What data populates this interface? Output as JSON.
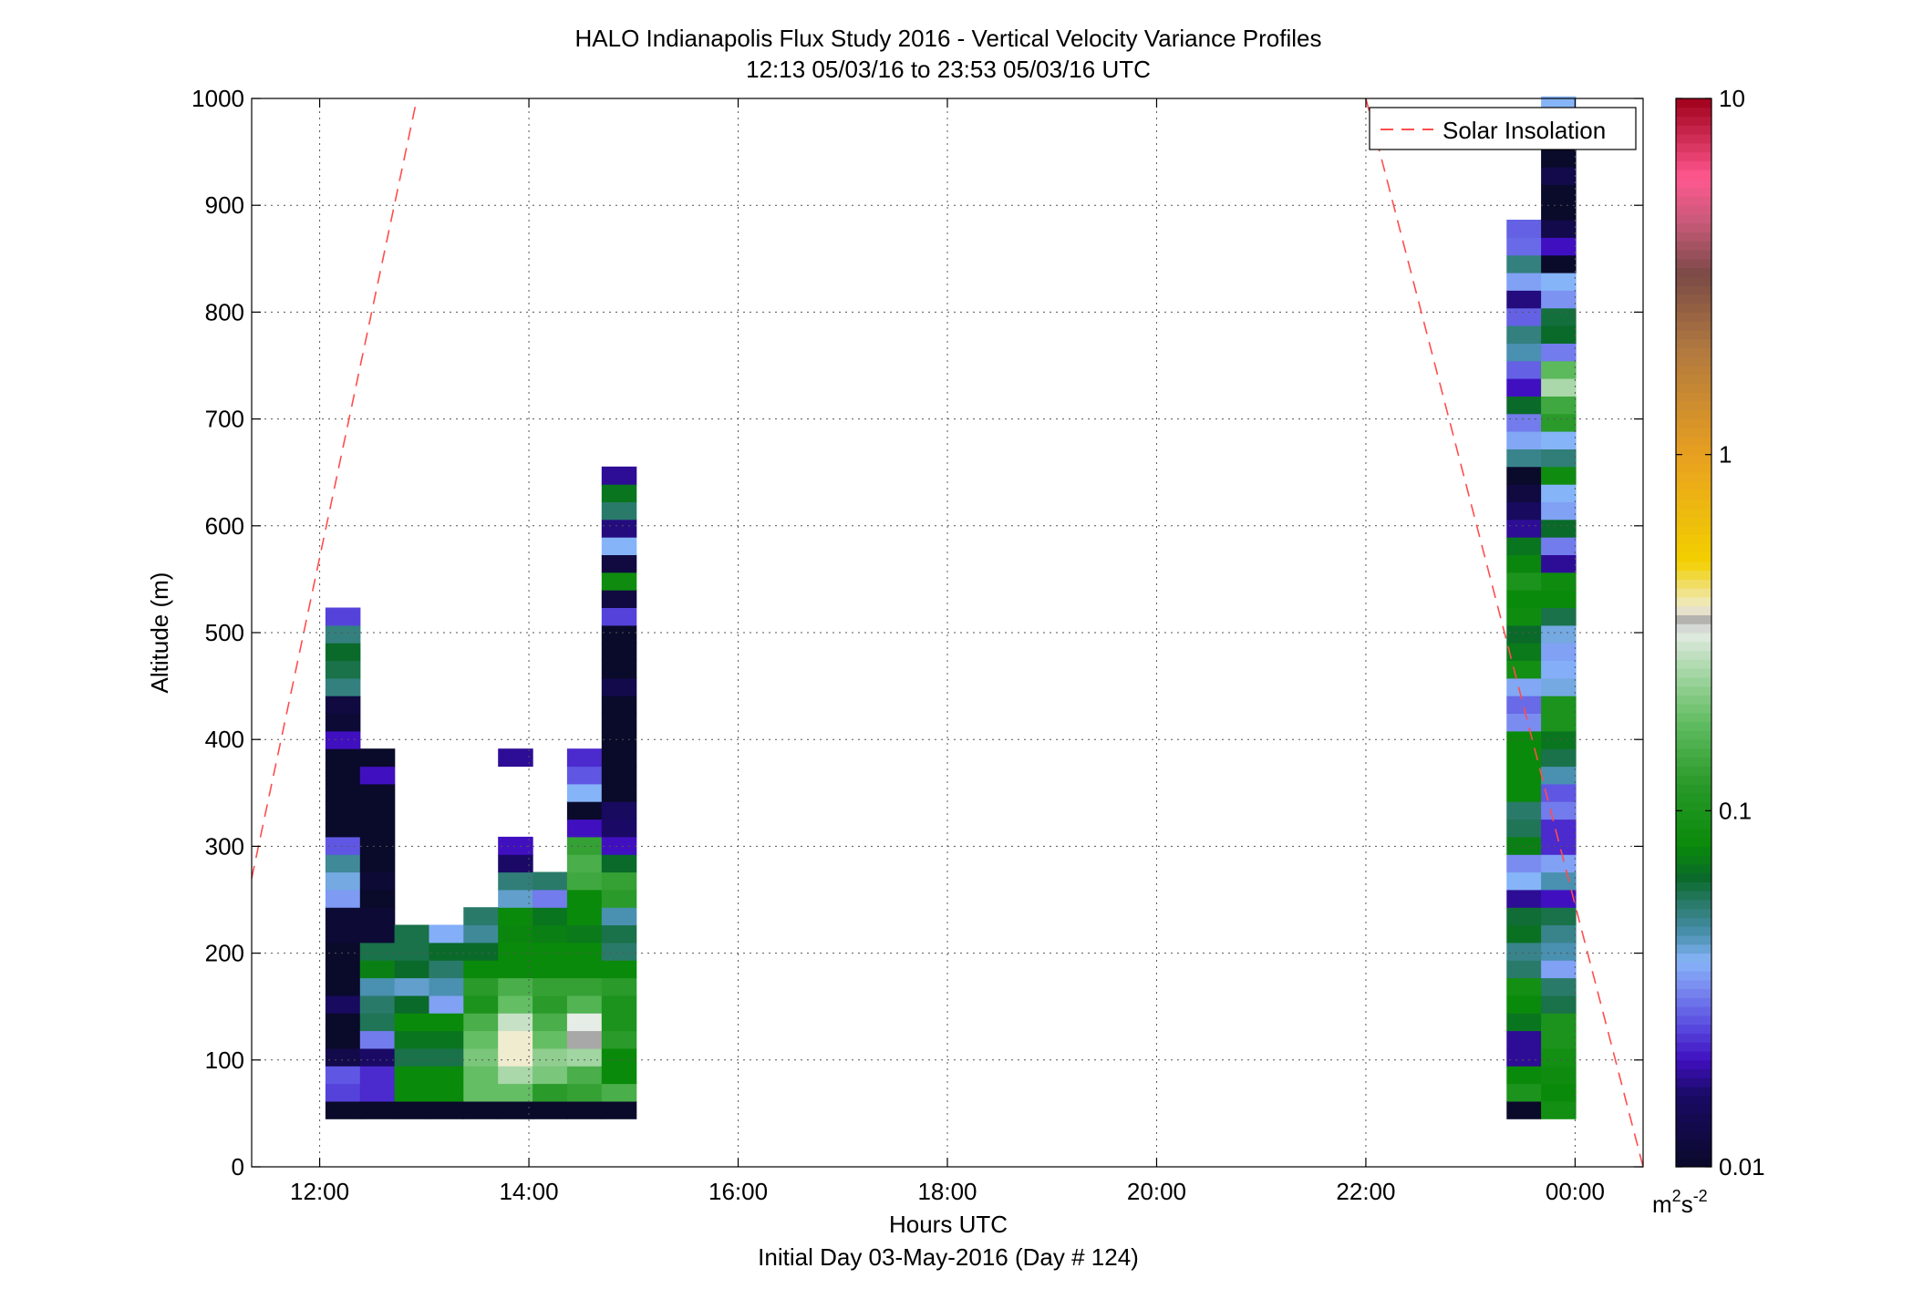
{
  "chart_data": {
    "type": "heatmap",
    "title": "HALO Indianapolis Flux Study 2016 - Vertical Velocity Variance Profiles",
    "subtitle": "12:13 05/03/16 to 23:53 05/03/16  UTC",
    "xlabel": "Hours UTC",
    "xlabel2": "Initial Day 03-May-2016 (Day # 124)",
    "ylabel": "Altitude (m)",
    "xlim": [
      11.35,
      24.65
    ],
    "ylim": [
      0,
      1000
    ],
    "x_ticks": [
      {
        "value": 12,
        "label": "12:00"
      },
      {
        "value": 14,
        "label": "14:00"
      },
      {
        "value": 16,
        "label": "16:00"
      },
      {
        "value": 18,
        "label": "18:00"
      },
      {
        "value": 20,
        "label": "20:00"
      },
      {
        "value": 22,
        "label": "22:00"
      },
      {
        "value": 24,
        "label": "00:00"
      }
    ],
    "y_ticks": [
      {
        "value": 0,
        "label": "0"
      },
      {
        "value": 100,
        "label": "100"
      },
      {
        "value": 200,
        "label": "200"
      },
      {
        "value": 300,
        "label": "300"
      },
      {
        "value": 400,
        "label": "400"
      },
      {
        "value": 500,
        "label": "500"
      },
      {
        "value": 600,
        "label": "600"
      },
      {
        "value": 700,
        "label": "700"
      },
      {
        "value": 800,
        "label": "800"
      },
      {
        "value": 900,
        "label": "900"
      },
      {
        "value": 1000,
        "label": "1000"
      }
    ],
    "grid": true,
    "legend": {
      "position": "top-right",
      "label": "Solar Insolation",
      "color": "#ff4d4d",
      "style": "dashed"
    },
    "colorbar": {
      "scale": "log",
      "range": [
        0.01,
        10
      ],
      "ticks": [
        {
          "value": 0.01,
          "label": "0.01"
        },
        {
          "value": 0.1,
          "label": "0.1"
        },
        {
          "value": 1,
          "label": "1"
        },
        {
          "value": 10,
          "label": "10"
        }
      ],
      "unit": "m",
      "unit_sup": "2",
      "unit_mid": "s",
      "unit_sup2": "-2",
      "stops": [
        {
          "v": 0.01,
          "c": "#0a0a2a"
        },
        {
          "v": 0.016,
          "c": "#1a0a66"
        },
        {
          "v": 0.02,
          "c": "#4010c0"
        },
        {
          "v": 0.025,
          "c": "#5a4de0"
        },
        {
          "v": 0.032,
          "c": "#7a8cf0"
        },
        {
          "v": 0.038,
          "c": "#86b4f8"
        },
        {
          "v": 0.045,
          "c": "#4a90b0"
        },
        {
          "v": 0.055,
          "c": "#2a7a6a"
        },
        {
          "v": 0.065,
          "c": "#0a6a2a"
        },
        {
          "v": 0.08,
          "c": "#0a8a0a"
        },
        {
          "v": 0.12,
          "c": "#2a9a2a"
        },
        {
          "v": 0.18,
          "c": "#64be64"
        },
        {
          "v": 0.25,
          "c": "#aad8aa"
        },
        {
          "v": 0.32,
          "c": "#e6ece6"
        },
        {
          "v": 0.34,
          "c": "#a8a8a8"
        },
        {
          "v": 0.37,
          "c": "#f0ecd0"
        },
        {
          "v": 0.5,
          "c": "#f2d000"
        },
        {
          "v": 1.0,
          "c": "#e8a020"
        },
        {
          "v": 2.0,
          "c": "#b07840"
        },
        {
          "v": 3.2,
          "c": "#7a4a46"
        },
        {
          "v": 4.5,
          "c": "#c85a7a"
        },
        {
          "v": 6.0,
          "c": "#ff5890"
        },
        {
          "v": 10,
          "c": "#a0001a"
        }
      ]
    },
    "solar_insolation": [
      {
        "x": 11.35,
        "y": 270
      },
      {
        "x": 12.93,
        "y": 1000
      },
      {
        "x": 22.0,
        "y": 1000
      },
      {
        "x": 24.65,
        "y": 0
      }
    ],
    "time_step_hours": 0.33,
    "alt_step_m": 16.5,
    "columns": [
      {
        "x": 12.22,
        "alt_bottom": 45,
        "values": [
          0.01,
          0.024,
          0.026,
          0.013,
          0.01,
          0.01,
          0.015,
          0.01,
          0.01,
          0.01,
          0.011,
          0.011,
          0.034,
          0.04,
          0.048,
          0.026,
          0.01,
          0.01,
          0.01,
          0.01,
          0.01,
          0.02,
          0.011,
          0.012,
          0.052,
          0.06,
          0.065,
          0.052,
          0.024
        ]
      },
      {
        "x": 12.55,
        "alt_bottom": 45,
        "values": [
          0.01,
          0.022,
          0.022,
          0.016,
          0.03,
          0.058,
          0.055,
          0.045,
          0.075,
          0.06,
          0.011,
          0.011,
          0.01,
          0.011,
          0.01,
          0.01,
          0.01,
          0.01,
          0.01,
          0.02,
          0.01
        ]
      },
      {
        "x": 12.88,
        "alt_bottom": 45,
        "values": [
          0.01,
          0.08,
          0.08,
          0.06,
          0.07,
          0.08,
          0.065,
          0.042,
          0.065,
          0.06,
          0.06
        ]
      },
      {
        "x": 13.21,
        "alt_bottom": 45,
        "values": [
          0.01,
          0.08,
          0.08,
          0.06,
          0.07,
          0.08,
          0.035,
          0.045,
          0.055,
          0.065,
          0.037
        ]
      },
      {
        "x": 13.54,
        "alt_bottom": 45,
        "values": [
          0.01,
          0.18,
          0.18,
          0.2,
          0.18,
          0.15,
          0.1,
          0.12,
          0.08,
          0.065,
          0.048,
          0.055
        ]
      },
      {
        "x": 13.87,
        "alt_bottom": 45,
        "values": [
          0.01,
          0.18,
          0.25,
          0.37,
          0.37,
          0.28,
          0.18,
          0.15,
          0.08,
          0.08,
          0.078,
          0.08,
          0.042,
          0.053,
          0.016,
          0.02,
          0,
          0,
          0,
          0,
          0.018
        ]
      },
      {
        "x": 14.2,
        "alt_bottom": 45,
        "values": [
          0.01,
          0.12,
          0.2,
          0.22,
          0.18,
          0.15,
          0.12,
          0.13,
          0.08,
          0.08,
          0.075,
          0.07,
          0.03,
          0.055
        ]
      },
      {
        "x": 14.53,
        "alt_bottom": 45,
        "values": [
          0.01,
          0.13,
          0.15,
          0.24,
          0.34,
          0.32,
          0.16,
          0.13,
          0.08,
          0.08,
          0.072,
          0.08,
          0.08,
          0.14,
          0.15,
          0.13,
          0.02,
          0.01,
          0.038,
          0.026,
          0.022
        ]
      },
      {
        "x": 14.86,
        "alt_bottom": 45,
        "values": [
          0.01,
          0.15,
          0.08,
          0.08,
          0.12,
          0.1,
          0.1,
          0.12,
          0.08,
          0.055,
          0.06,
          0.045,
          0.12,
          0.13,
          0.065,
          0.02,
          0.016,
          0.015,
          0.01,
          0.01,
          0.01,
          0.01,
          0.01,
          0.01,
          0.013,
          0.01,
          0.01,
          0.01,
          0.024,
          0.012,
          0.085,
          0.012,
          0.038,
          0.017,
          0.055,
          0.07,
          0.018
        ]
      },
      {
        "x": 23.51,
        "alt_bottom": 45,
        "values": [
          0.01,
          0.1,
          0.08,
          0.018,
          0.018,
          0.07,
          0.08,
          0.09,
          0.055,
          0.05,
          0.068,
          0.063,
          0.018,
          0.038,
          0.032,
          0.075,
          0.058,
          0.055,
          0.08,
          0.08,
          0.08,
          0.08,
          0.032,
          0.028,
          0.036,
          0.09,
          0.072,
          0.065,
          0.085,
          0.08,
          0.1,
          0.078,
          0.07,
          0.018,
          0.015,
          0.012,
          0.01,
          0.05,
          0.036,
          0.03,
          0.065,
          0.02,
          0.027,
          0.045,
          0.052,
          0.027,
          0.017,
          0.035,
          0.052,
          0.028,
          0.027
        ]
      },
      {
        "x": 23.84,
        "alt_bottom": 45,
        "values": [
          0.09,
          0.08,
          0.085,
          0.09,
          0.1,
          0.1,
          0.06,
          0.055,
          0.035,
          0.045,
          0.05,
          0.06,
          0.02,
          0.045,
          0.035,
          0.022,
          0.022,
          0.03,
          0.026,
          0.045,
          0.06,
          0.07,
          0.1,
          0.1,
          0.04,
          0.037,
          0.035,
          0.04,
          0.06,
          0.08,
          0.085,
          0.018,
          0.03,
          0.065,
          0.035,
          0.038,
          0.085,
          0.053,
          0.038,
          0.12,
          0.14,
          0.25,
          0.17,
          0.03,
          0.065,
          0.062,
          0.033,
          0.038,
          0.01,
          0.02,
          0.013,
          0.01,
          0.01,
          0.013,
          0.01,
          0.01,
          0.014,
          0.038
        ]
      }
    ]
  }
}
